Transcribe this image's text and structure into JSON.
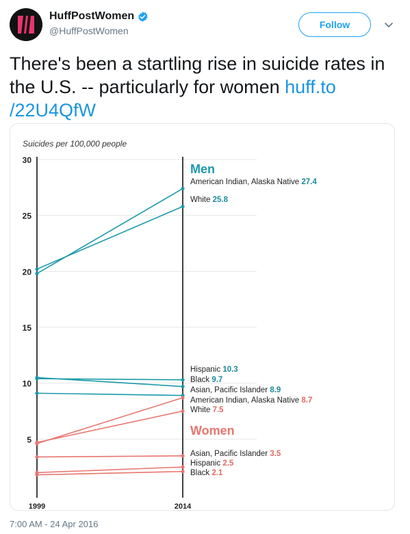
{
  "tweet": {
    "display_name": "HuffPostWomen",
    "handle": "@HuffPostWomen",
    "follow_label": "Follow",
    "text": "There's been a startling rise in suicide rates in the U.S. -- particularly for women ",
    "link_text": "huff.to/22U4QfW",
    "link_line1": "huff.to",
    "link_line2": "/22U4QfW",
    "timestamp": "7:00 AM - 24 Apr 2016",
    "icons": {
      "avatar": "huffpost-logo-icon",
      "verified": "verified-badge-icon",
      "more": "chevron-down-icon"
    },
    "colors": {
      "link": "#1b95e0",
      "men": "#1b9aaa",
      "women": "#e8766f",
      "men_value": "#1b8a9a",
      "women_value": "#e06a62"
    }
  },
  "chart_data": {
    "type": "line",
    "ylabel": "Suicides per 100,000 people",
    "x": [
      "1999",
      "2014"
    ],
    "ylim": [
      0,
      30
    ],
    "yticks": [
      5,
      10,
      15,
      20,
      25,
      30
    ],
    "grid": true,
    "groups": [
      {
        "name": "Men",
        "series": [
          {
            "name": "American Indian, Alaska Native",
            "values": [
              19.8,
              27.4
            ],
            "label": "27.4"
          },
          {
            "name": "White",
            "values": [
              20.2,
              25.8
            ],
            "label": "25.8"
          },
          {
            "name": "Hispanic",
            "values": [
              10.4,
              10.3
            ],
            "label": "10.3"
          },
          {
            "name": "Black",
            "values": [
              10.5,
              9.7
            ],
            "label": "9.7"
          },
          {
            "name": "Asian, Pacific Islander",
            "values": [
              9.1,
              8.9
            ],
            "label": "8.9"
          }
        ]
      },
      {
        "name": "Women",
        "series": [
          {
            "name": "American Indian, Alaska Native",
            "values": [
              4.6,
              8.7
            ],
            "label": "8.7"
          },
          {
            "name": "White",
            "values": [
              4.7,
              7.5
            ],
            "label": "7.5"
          },
          {
            "name": "Asian, Pacific Islander",
            "values": [
              3.4,
              3.5
            ],
            "label": "3.5"
          },
          {
            "name": "Hispanic",
            "values": [
              2.0,
              2.5
            ],
            "label": "2.5"
          },
          {
            "name": "Black",
            "values": [
              1.8,
              2.1
            ],
            "label": "2.1"
          }
        ]
      }
    ]
  }
}
